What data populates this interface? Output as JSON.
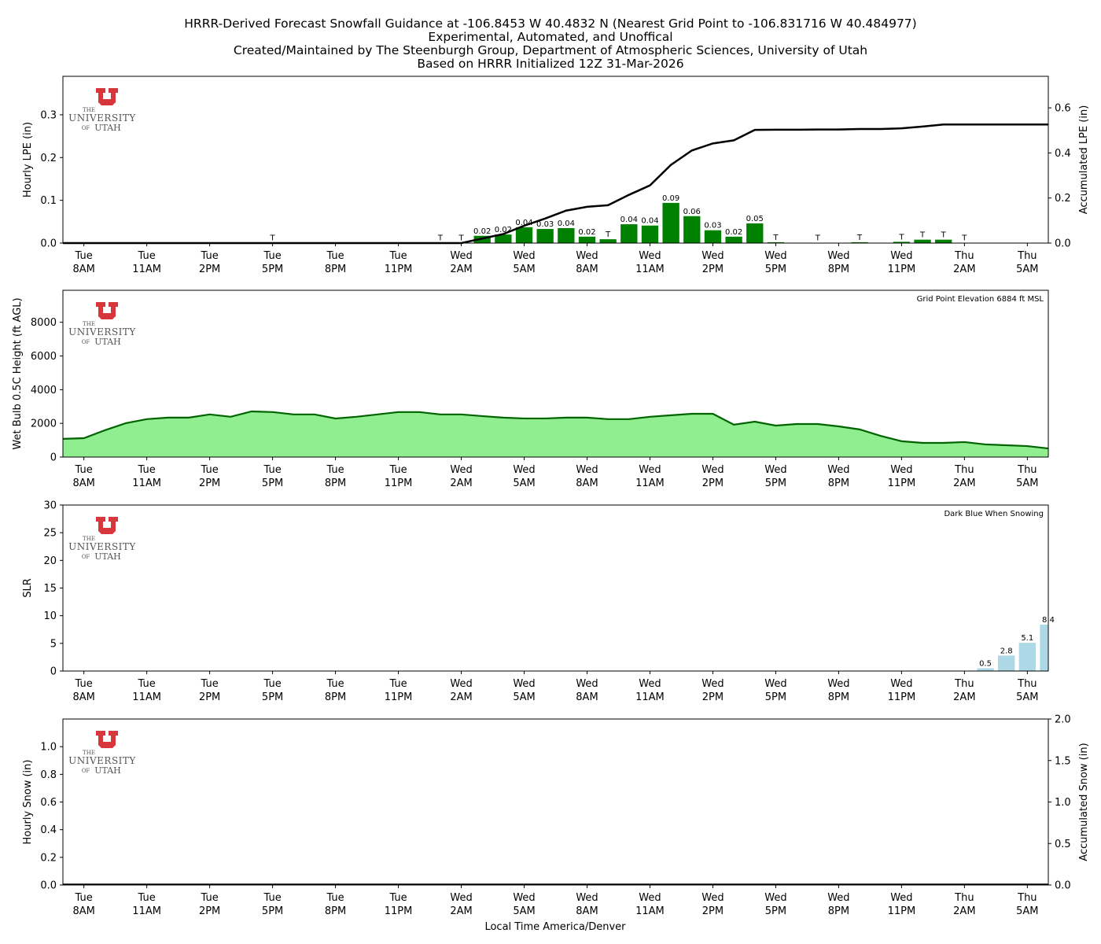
{
  "title_lines": [
    "HRRR-Derived Forecast Snowfall Guidance at -106.8453 W 40.4832 N (Nearest Grid Point to -106.831716 W 40.484977)",
    "Experimental, Automated, and Unoffical",
    "Created/Maintained by The Steenburgh Group, Department of Atmospheric Sciences, University of Utah",
    "Based on HRRR Initialized 12Z 31-Mar-2026"
  ],
  "logo": {
    "the": "THE",
    "university": "UNIVERSITY",
    "of": "OF",
    "utah": "UTAH",
    "color": "#d7363c"
  },
  "xlabel": "Local Time America/Denver",
  "chart_data": [
    {
      "type": "bar",
      "ylabel": "Hourly LPE (in)",
      "y2label": "Accumulated LPE (in)",
      "ylim": [
        0,
        0.39
      ],
      "y2lim": [
        0,
        0.74
      ],
      "yticks": [
        "0.0",
        "0.1",
        "0.2",
        "0.3"
      ],
      "y2ticks": [
        "0.0",
        "0.2",
        "0.4",
        "0.6"
      ],
      "bar_color": "#008000",
      "line_color": "#000000",
      "values": [
        0,
        0,
        0,
        0,
        0,
        0,
        0,
        0,
        0,
        0,
        0.0005,
        0,
        0,
        0,
        0,
        0,
        0,
        0,
        0.0005,
        0.0005,
        0.017,
        0.02,
        0.037,
        0.033,
        0.035,
        0.015,
        0.009,
        0.044,
        0.041,
        0.094,
        0.063,
        0.03,
        0.015,
        0.046,
        0.002,
        0,
        0.0005,
        0,
        0.002,
        0,
        0.003,
        0.008,
        0.008,
        0.0005,
        0,
        0,
        0,
        0
      ],
      "labels": [
        "",
        "",
        "",
        "",
        "",
        "",
        "",
        "",
        "",
        "",
        "T",
        "",
        "",
        "",
        "",
        "",
        "",
        "",
        "T",
        "T",
        "0.02",
        "0.02",
        "0.04",
        "0.03",
        "0.04",
        "0.02",
        "T",
        "0.04",
        "0.04",
        "0.09",
        "0.06",
        "0.03",
        "0.02",
        "0.05",
        "T",
        "",
        "T",
        "",
        "T",
        "",
        "T",
        "T",
        "T",
        "T",
        "",
        "",
        "",
        ""
      ],
      "accumulated": [
        0,
        0,
        0,
        0,
        0,
        0,
        0,
        0,
        0,
        0,
        0,
        0,
        0,
        0,
        0,
        0,
        0,
        0,
        0,
        0,
        0.02,
        0.04,
        0.077,
        0.109,
        0.144,
        0.161,
        0.168,
        0.214,
        0.256,
        0.347,
        0.411,
        0.442,
        0.456,
        0.502,
        0.503,
        0.503,
        0.504,
        0.504,
        0.506,
        0.506,
        0.509,
        0.517,
        0.526,
        0.526,
        0.526,
        0.526,
        0.526,
        0.526
      ]
    },
    {
      "type": "area",
      "ylabel": "Wet Bulb 0.5C Height (ft AGL)",
      "ylim": [
        0,
        9900
      ],
      "yticks": [
        "0",
        "2000",
        "4000",
        "6000",
        "8000"
      ],
      "annotation": "Grid Point Elevation 6884 ft MSL",
      "fill_color": "#90ee90",
      "line_color": "#006400",
      "values": [
        1080,
        1120,
        1590,
        2010,
        2250,
        2340,
        2340,
        2530,
        2390,
        2710,
        2670,
        2530,
        2530,
        2290,
        2390,
        2530,
        2670,
        2670,
        2530,
        2530,
        2430,
        2340,
        2290,
        2290,
        2340,
        2340,
        2250,
        2250,
        2390,
        2480,
        2570,
        2570,
        1920,
        2100,
        1870,
        1960,
        1960,
        1820,
        1640,
        1260,
        940,
        840,
        840,
        890,
        750,
        700,
        650,
        510
      ]
    },
    {
      "type": "bar",
      "ylabel": "SLR",
      "ylim": [
        0,
        30
      ],
      "yticks": [
        "0",
        "5",
        "10",
        "15",
        "20",
        "25",
        "30"
      ],
      "annotation": "Dark Blue When Snowing",
      "bar_color": "#add8e6",
      "values": [
        0,
        0,
        0,
        0,
        0,
        0,
        0,
        0,
        0,
        0,
        0,
        0,
        0,
        0,
        0,
        0,
        0,
        0,
        0,
        0,
        0,
        0,
        0,
        0,
        0,
        0,
        0,
        0,
        0,
        0,
        0,
        0,
        0,
        0,
        0,
        0,
        0,
        0,
        0,
        0,
        0,
        0,
        0,
        0,
        0.5,
        2.8,
        5.1,
        8.4
      ],
      "labels": [
        "",
        "",
        "",
        "",
        "",
        "",
        "",
        "",
        "",
        "",
        "",
        "",
        "",
        "",
        "",
        "",
        "",
        "",
        "",
        "",
        "",
        "",
        "",
        "",
        "",
        "",
        "",
        "",
        "",
        "",
        "",
        "",
        "",
        "",
        "",
        "",
        "",
        "",
        "",
        "",
        "",
        "",
        "",
        "",
        "0.5",
        "2.8",
        "5.1",
        "8.4"
      ]
    },
    {
      "type": "bar",
      "ylabel": "Hourly Snow (in)",
      "y2label": "Accumulated Snow (in)",
      "ylim": [
        0,
        1.2
      ],
      "y2lim": [
        0,
        2.0
      ],
      "yticks": [
        "0.0",
        "0.2",
        "0.4",
        "0.6",
        "0.8",
        "1.0"
      ],
      "y2ticks": [
        "0.0",
        "0.5",
        "1.0",
        "1.5",
        "2.0"
      ],
      "values": [],
      "accumulated": []
    }
  ],
  "x_start": "Tue 7AM",
  "x_end": "Thu 6AM",
  "xticks": [
    [
      "Tue",
      "8AM"
    ],
    [
      "Tue",
      "11AM"
    ],
    [
      "Tue",
      "2PM"
    ],
    [
      "Tue",
      "5PM"
    ],
    [
      "Tue",
      "8PM"
    ],
    [
      "Tue",
      "11PM"
    ],
    [
      "Wed",
      "2AM"
    ],
    [
      "Wed",
      "5AM"
    ],
    [
      "Wed",
      "8AM"
    ],
    [
      "Wed",
      "11AM"
    ],
    [
      "Wed",
      "2PM"
    ],
    [
      "Wed",
      "5PM"
    ],
    [
      "Wed",
      "8PM"
    ],
    [
      "Wed",
      "11PM"
    ],
    [
      "Thu",
      "2AM"
    ],
    [
      "Thu",
      "5AM"
    ]
  ]
}
